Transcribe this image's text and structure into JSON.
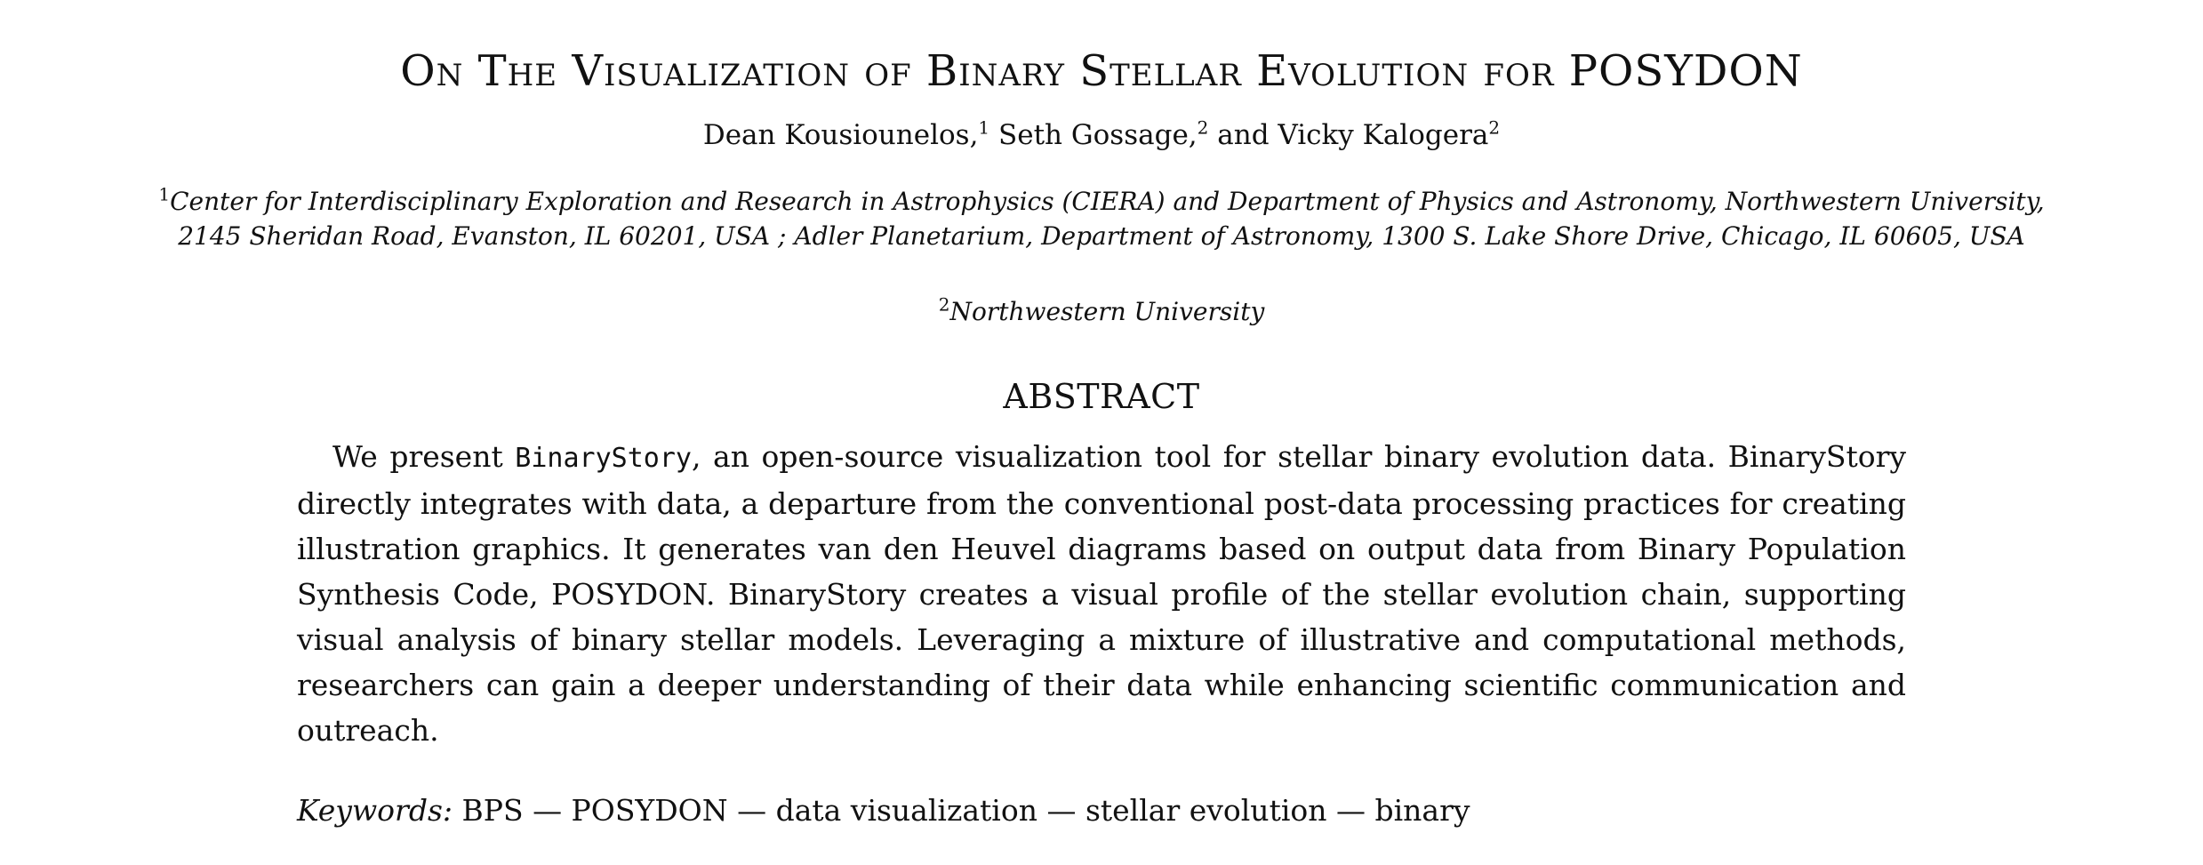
{
  "paper": {
    "title": "On The Visualization of Binary Stellar Evolution for POSYDON",
    "authors": [
      {
        "name": "Dean Kousiounelos,",
        "affil_mark": "1"
      },
      {
        "name": "Seth Gossage,",
        "affil_mark": "2"
      },
      {
        "name": "and Vicky Kalogera",
        "affil_mark": "2"
      }
    ],
    "affiliations": [
      {
        "mark": "1",
        "text": "Center for Interdisciplinary Exploration and Research in Astrophysics (CIERA) and Department of Physics and Astronomy, Northwestern University, 2145 Sheridan Road, Evanston, IL 60201, USA ; Adler Planetarium, Department of Astronomy, 1300 S. Lake Shore Drive, Chicago, IL 60605, USA"
      },
      {
        "mark": "2",
        "text": "Northwestern University"
      }
    ],
    "abstract": {
      "heading": "ABSTRACT",
      "lead": "We present ",
      "tool_name": "BinaryStory",
      "body": ", an open-source visualization tool for stellar binary evolution data. Bina­ryStory directly integrates with data, a departure from the conventional post-data processing practices for creating illustration graphics.  It generates van den Heuvel diagrams based on output data from Binary Population Synthesis Code, POSYDON. BinaryStory creates a visual profile of the stellar evo­lution chain, supporting visual analysis of binary stellar models.  Leveraging a mixture of illustrative and computational methods, researchers can gain a deeper understanding of their data while enhancing scientific communication and outreach."
    },
    "keywords": {
      "label": "Keywords:",
      "text": "BPS — POSYDON — data visualization — stellar evolution — binary"
    }
  }
}
